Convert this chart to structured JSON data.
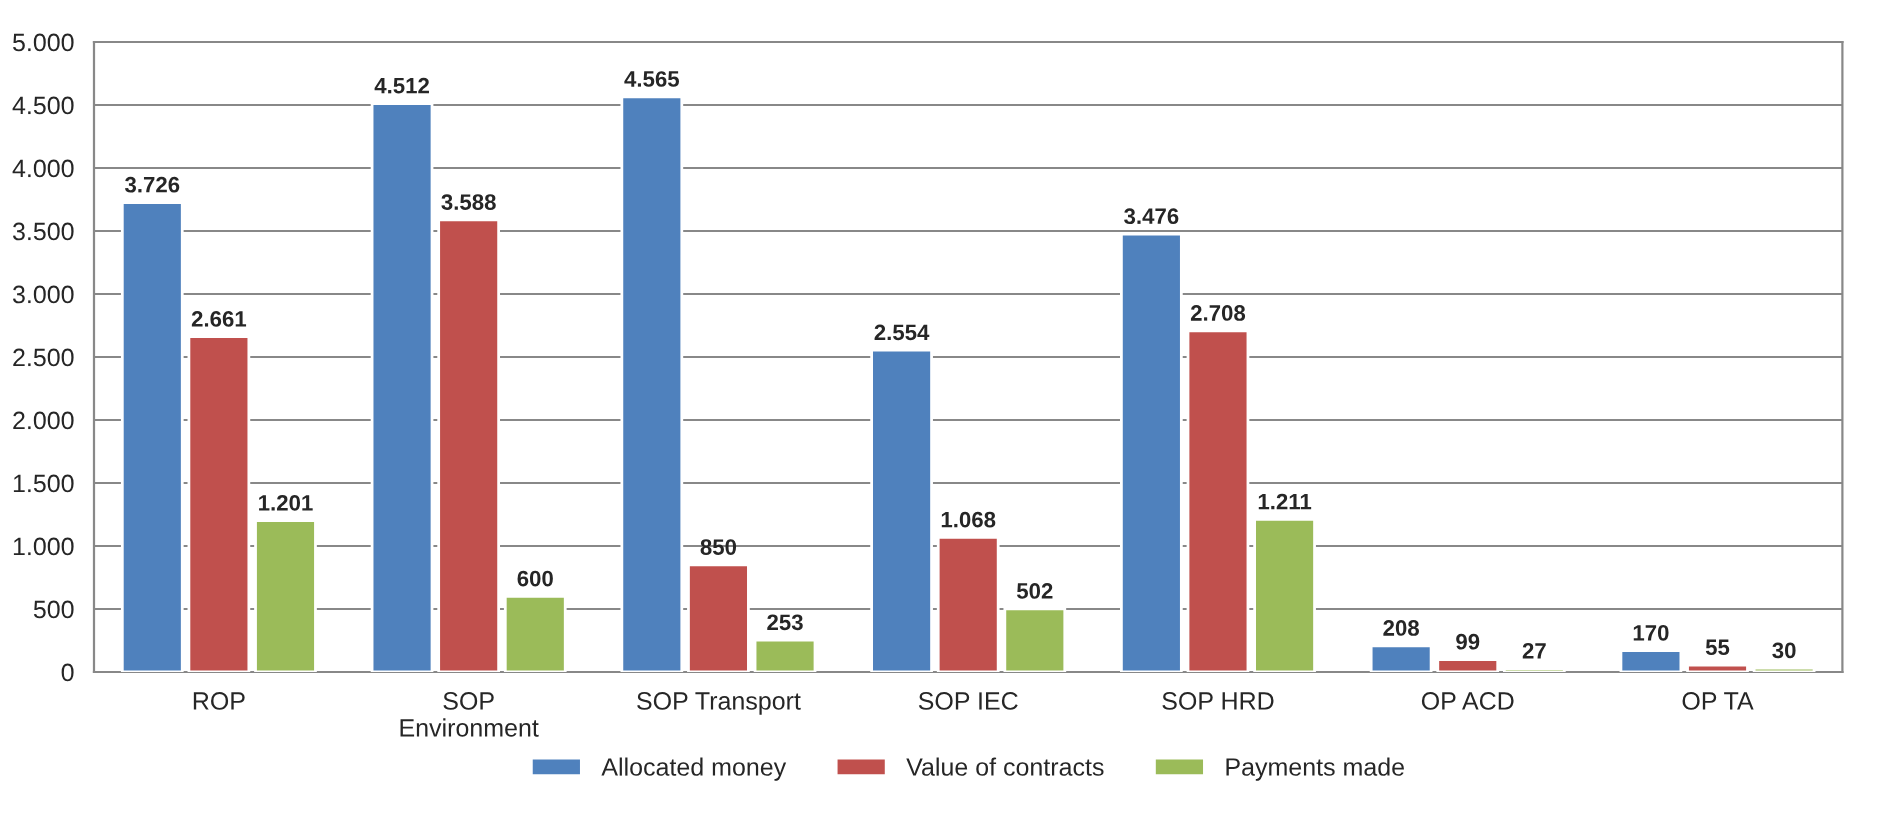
{
  "chart_data": {
    "type": "bar",
    "categories": [
      "ROP",
      "SOP\nEnvironment",
      "SOP Transport",
      "SOP IEC",
      "SOP HRD",
      "OP ACD",
      "OP TA"
    ],
    "series": [
      {
        "name": "Allocated money",
        "color": "#4f81bd",
        "values": [
          3726,
          4512,
          4565,
          2554,
          3476,
          208,
          170
        ],
        "value_labels": [
          "3.726",
          "4.512",
          "4.565",
          "2.554",
          "3.476",
          "208",
          "170"
        ]
      },
      {
        "name": "Value of contracts",
        "color": "#c0504d",
        "values": [
          2661,
          3588,
          850,
          1068,
          2708,
          99,
          55
        ],
        "value_labels": [
          "2.661",
          "3.588",
          "850",
          "1.068",
          "2.708",
          "99",
          "55"
        ]
      },
      {
        "name": "Payments made",
        "color": "#9bbb59",
        "values": [
          1201,
          600,
          253,
          502,
          1211,
          27,
          30
        ],
        "value_labels": [
          "1.201",
          "600",
          "253",
          "502",
          "1.211",
          "27",
          "30"
        ]
      }
    ],
    "ylim": [
      0,
      5000
    ],
    "yticks": [
      0,
      500,
      {
        "value": 1000,
        "label": "1.000"
      },
      {
        "value": 1500,
        "label": "1.500"
      },
      {
        "value": 2000,
        "label": "2.000"
      },
      {
        "value": 2500,
        "label": "2.500"
      },
      {
        "value": 3000,
        "label": "3.000"
      },
      {
        "value": 3500,
        "label": "3.500"
      },
      {
        "value": 4000,
        "label": "4.000"
      },
      {
        "value": 4500,
        "label": "4.500"
      },
      {
        "value": 5000,
        "label": "5.000"
      }
    ],
    "grid": "y",
    "legend": "bottom"
  }
}
